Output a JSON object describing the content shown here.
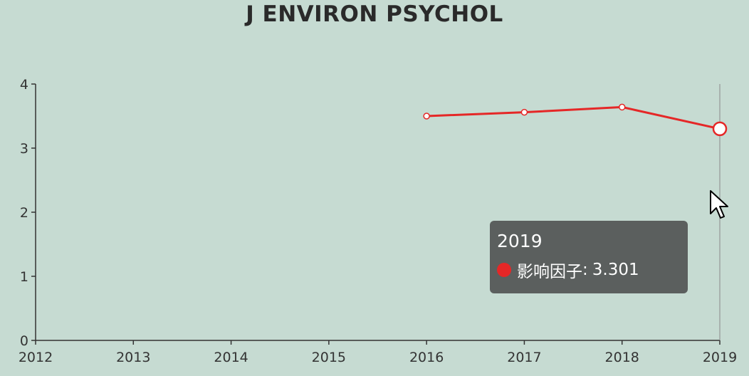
{
  "chart_data": {
    "type": "line",
    "title": "J ENVIRON PSYCHOL",
    "categories": [
      "2012",
      "2013",
      "2014",
      "2015",
      "2016",
      "2017",
      "2018",
      "2019"
    ],
    "series": [
      {
        "name": "影响因子",
        "values": [
          null,
          null,
          null,
          null,
          3.5,
          3.56,
          3.64,
          3.301
        ],
        "color": "#e52727"
      }
    ],
    "ylim": [
      0,
      4
    ],
    "yticks": [
      "0",
      "1",
      "2",
      "3",
      "4"
    ],
    "grid": false,
    "legend": "none"
  },
  "tooltip": {
    "title": "2019",
    "series_name": "影响因子",
    "separator": ":",
    "value": "3.301",
    "dot_color": "#e52727"
  },
  "colors": {
    "background": "#c6dbd2",
    "line": "#e52727",
    "axis": "#333333"
  }
}
